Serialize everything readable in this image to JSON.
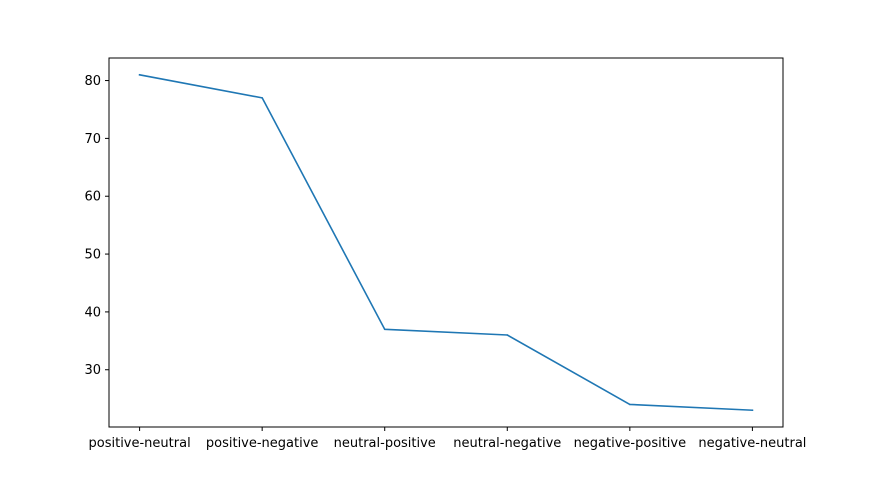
{
  "chart_data": {
    "type": "line",
    "title": "",
    "xlabel": "",
    "ylabel": "",
    "categories": [
      "positive-neutral",
      "positive-negative",
      "neutral-positive",
      "neutral-negative",
      "negative-positive",
      "negative-neutral"
    ],
    "series": [
      {
        "values": [
          81,
          77,
          37,
          36,
          24,
          23
        ],
        "color": "#1f77b4"
      }
    ],
    "ylim": [
      20.1,
      83.9
    ],
    "yticks": [
      30,
      40,
      50,
      60,
      70,
      80
    ],
    "grid": false,
    "legend": "none"
  }
}
